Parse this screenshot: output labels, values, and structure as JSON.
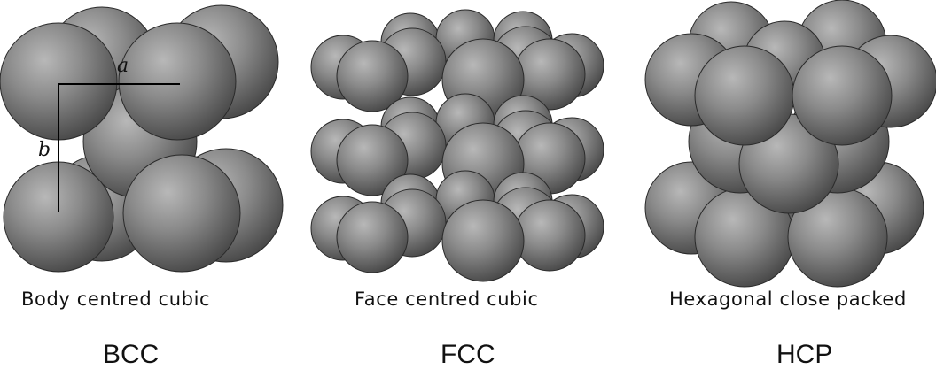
{
  "structures": [
    {
      "id": "bcc",
      "caption": "Body centred cubic",
      "abbreviation": "BCC",
      "axis_labels": {
        "a": "a",
        "b": "b"
      }
    },
    {
      "id": "fcc",
      "caption": "Face centred cubic",
      "abbreviation": "FCC"
    },
    {
      "id": "hcp",
      "caption": "Hexagonal close packed",
      "abbreviation": "HCP"
    }
  ],
  "colors": {
    "sphere_light": "#b4b4b4",
    "sphere_mid": "#7c7c7c",
    "sphere_dark": "#4a4a4a",
    "outline": "#2a2a2a",
    "text": "#111111"
  }
}
